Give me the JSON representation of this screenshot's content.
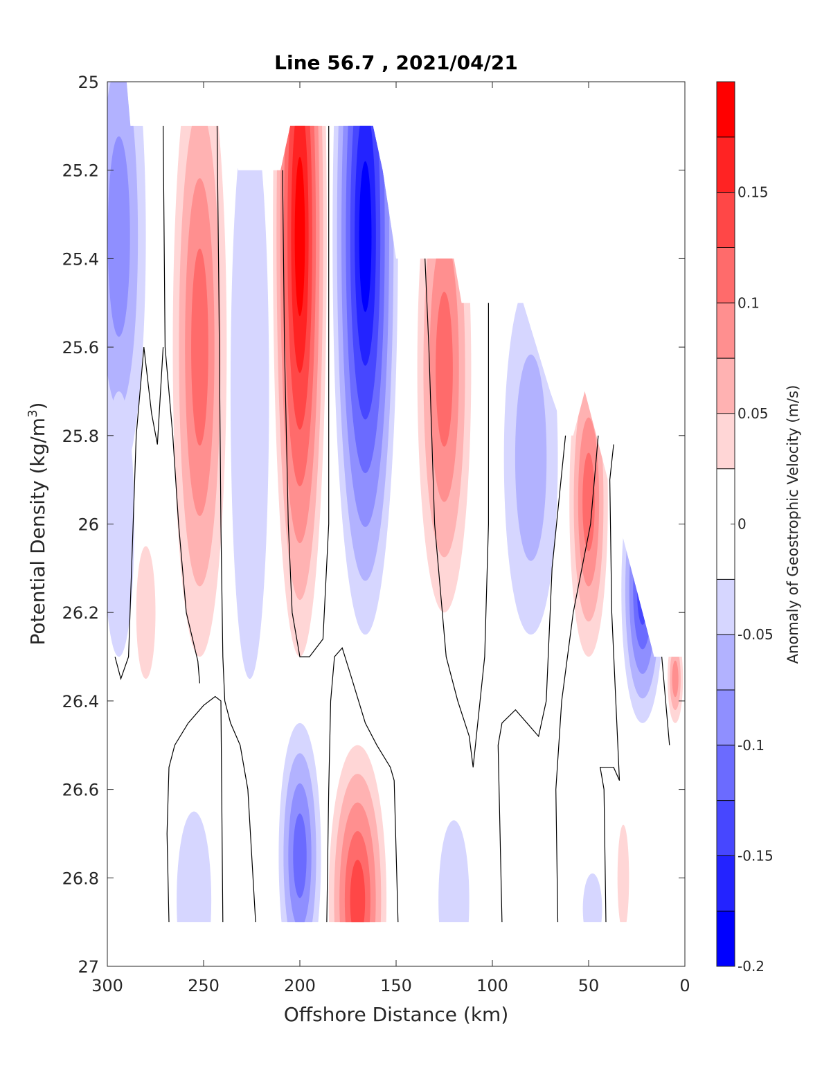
{
  "chart_data": {
    "type": "contourf",
    "title": "Line 56.7 , 2021/04/21",
    "xlabel": "Offshore Distance (km)",
    "ylabel_main": "Potential Density (kg/m",
    "ylabel_sup": "3",
    "ylabel_close": ")",
    "xlim": [
      300,
      0
    ],
    "ylim": [
      25,
      27
    ],
    "x_reversed": true,
    "y_reversed": true,
    "xticks": [
      300,
      250,
      200,
      150,
      100,
      50,
      0
    ],
    "xtick_labels": [
      "300",
      "250",
      "200",
      "150",
      "100",
      "50",
      "0"
    ],
    "yticks": [
      25,
      25.2,
      25.4,
      25.6,
      25.8,
      26,
      26.2,
      26.4,
      26.6,
      26.8,
      27
    ],
    "ytick_labels": [
      "25",
      "25.2",
      "25.4",
      "25.6",
      "25.8",
      "26",
      "26.2",
      "26.4",
      "26.6",
      "26.8",
      "27"
    ],
    "colorbar": {
      "label": "Anomaly of Geostrophic Velocity (m/s)",
      "range": [
        -0.2,
        0.2
      ],
      "levels": [
        -0.2,
        -0.175,
        -0.15,
        -0.125,
        -0.1,
        -0.075,
        -0.05,
        -0.025,
        0.025,
        0.05,
        0.075,
        0.1,
        0.125,
        0.15,
        0.175,
        0.2
      ],
      "level_colors": [
        "#0000ff",
        "#2323ff",
        "#4747ff",
        "#6b6bff",
        "#8f8fff",
        "#b2b2ff",
        "#d6d6ff",
        "#ffffff",
        "#ffd6d6",
        "#ffb2b2",
        "#ff8f8f",
        "#ff6b6b",
        "#ff4747",
        "#ff2323",
        "#ff0000"
      ],
      "ticks": [
        -0.2,
        -0.15,
        -0.1,
        -0.05,
        0,
        0.05,
        0.1,
        0.15
      ],
      "tick_labels": [
        "-0.2",
        "-0.15",
        "-0.1",
        "-0.05",
        "0",
        "0.05",
        "0.1",
        "0.15"
      ]
    },
    "grid": false,
    "legend": "none",
    "data_top_boundary": [
      [
        300,
        25.0
      ],
      [
        290,
        25.0
      ],
      [
        288,
        25.1
      ],
      [
        238,
        25.1
      ],
      [
        232,
        25.2
      ],
      [
        210,
        25.2
      ],
      [
        205,
        25.1
      ],
      [
        162,
        25.1
      ],
      [
        157,
        25.2
      ],
      [
        150,
        25.4
      ],
      [
        120,
        25.4
      ],
      [
        116,
        25.5
      ],
      [
        96,
        25.5
      ],
      [
        84,
        25.5
      ],
      [
        70,
        25.7
      ],
      [
        62,
        25.8
      ],
      [
        58,
        25.8
      ],
      [
        52,
        25.7
      ],
      [
        46,
        25.8
      ],
      [
        40,
        25.9
      ],
      [
        28,
        26.1
      ],
      [
        16,
        26.3
      ],
      [
        0,
        26.3
      ]
    ],
    "data_bottom_depth": 26.9,
    "anomaly_cores": [
      {
        "x": 294,
        "y": 25.35,
        "peak": -0.075,
        "rx": 14,
        "ry": 0.55
      },
      {
        "x": 294,
        "y": 26.0,
        "peak": -0.04,
        "rx": 8,
        "ry": 0.3
      },
      {
        "x": 280,
        "y": 26.2,
        "peak": 0.035,
        "rx": 5,
        "ry": 0.15
      },
      {
        "x": 252,
        "y": 25.6,
        "peak": 0.11,
        "rx": 14,
        "ry": 0.7
      },
      {
        "x": 226,
        "y": 25.7,
        "peak": -0.045,
        "rx": 10,
        "ry": 0.65
      },
      {
        "x": 200,
        "y": 25.35,
        "peak": 0.2,
        "rx": 14,
        "ry": 0.95
      },
      {
        "x": 166,
        "y": 25.35,
        "peak": -0.2,
        "rx": 17,
        "ry": 0.9
      },
      {
        "x": 125,
        "y": 25.65,
        "peak": 0.12,
        "rx": 14,
        "ry": 0.55
      },
      {
        "x": 80,
        "y": 25.85,
        "peak": -0.07,
        "rx": 14,
        "ry": 0.4
      },
      {
        "x": 50,
        "y": 25.95,
        "peak": 0.12,
        "rx": 10,
        "ry": 0.35
      },
      {
        "x": 22,
        "y": 26.15,
        "peak": -0.13,
        "rx": 11,
        "ry": 0.3
      },
      {
        "x": 5,
        "y": 26.35,
        "peak": 0.09,
        "rx": 4,
        "ry": 0.1
      },
      {
        "x": 200,
        "y": 26.75,
        "peak": -0.12,
        "rx": 11,
        "ry": 0.3
      },
      {
        "x": 170,
        "y": 26.85,
        "peak": 0.14,
        "rx": 15,
        "ry": 0.35
      },
      {
        "x": 255,
        "y": 26.85,
        "peak": -0.04,
        "rx": 9,
        "ry": 0.2
      },
      {
        "x": 120,
        "y": 26.85,
        "peak": -0.035,
        "rx": 8,
        "ry": 0.18
      },
      {
        "x": 48,
        "y": 26.87,
        "peak": -0.035,
        "rx": 5,
        "ry": 0.08
      },
      {
        "x": 32,
        "y": 26.8,
        "peak": 0.035,
        "rx": 3,
        "ry": 0.12
      }
    ],
    "zero_contours": [
      [
        [
          271,
          25.1
        ],
        [
          270,
          25.6
        ],
        [
          266,
          25.8
        ],
        [
          263,
          26.0
        ],
        [
          259,
          26.2
        ],
        [
          253,
          26.31
        ],
        [
          252,
          26.36
        ]
      ],
      [
        [
          296,
          26.3
        ],
        [
          293,
          26.35
        ],
        [
          289,
          26.3
        ],
        [
          285,
          25.8
        ],
        [
          281,
          25.6
        ],
        [
          277,
          25.75
        ],
        [
          274,
          25.82
        ],
        [
          271,
          25.6
        ]
      ],
      [
        [
          243,
          25.1
        ],
        [
          242,
          25.5
        ],
        [
          241,
          26.0
        ],
        [
          240,
          26.3
        ],
        [
          239,
          26.4
        ],
        [
          236,
          26.45
        ],
        [
          231,
          26.5
        ],
        [
          227,
          26.6
        ],
        [
          223,
          26.9
        ]
      ],
      [
        [
          209,
          25.2
        ],
        [
          208,
          25.6
        ],
        [
          206,
          26.0
        ],
        [
          204,
          26.2
        ],
        [
          200,
          26.3
        ],
        [
          195,
          26.3
        ],
        [
          188,
          26.26
        ],
        [
          185,
          26.0
        ],
        [
          185,
          25.1
        ]
      ],
      [
        [
          135,
          25.4
        ],
        [
          133,
          25.6
        ],
        [
          130,
          26.0
        ],
        [
          124,
          26.3
        ],
        [
          118,
          26.4
        ],
        [
          112,
          26.48
        ],
        [
          110,
          26.55
        ],
        [
          104,
          26.3
        ],
        [
          102,
          26.0
        ],
        [
          102,
          25.5
        ]
      ],
      [
        [
          268,
          26.9
        ],
        [
          269,
          26.7
        ],
        [
          268,
          26.55
        ],
        [
          265,
          26.5
        ],
        [
          258,
          26.45
        ],
        [
          250,
          26.41
        ],
        [
          244,
          26.39
        ],
        [
          241,
          26.4
        ],
        [
          240,
          26.9
        ]
      ],
      [
        [
          186,
          26.9
        ],
        [
          185,
          26.6
        ],
        [
          184,
          26.4
        ],
        [
          182,
          26.3
        ],
        [
          178,
          26.28
        ],
        [
          173,
          26.35
        ],
        [
          166,
          26.45
        ],
        [
          160,
          26.5
        ],
        [
          153,
          26.55
        ],
        [
          151,
          26.58
        ],
        [
          149,
          26.9
        ]
      ],
      [
        [
          95,
          26.9
        ],
        [
          96,
          26.7
        ],
        [
          97,
          26.5
        ],
        [
          95,
          26.45
        ],
        [
          88,
          26.42
        ],
        [
          82,
          26.45
        ],
        [
          76,
          26.48
        ],
        [
          72,
          26.4
        ],
        [
          69,
          26.1
        ],
        [
          62,
          25.8
        ]
      ],
      [
        [
          66,
          26.9
        ],
        [
          67,
          26.6
        ],
        [
          64,
          26.4
        ],
        [
          58,
          26.2
        ],
        [
          49,
          26.0
        ],
        [
          45,
          25.8
        ]
      ],
      [
        [
          41,
          26.9
        ],
        [
          42,
          26.6
        ],
        [
          44,
          26.55
        ],
        [
          37,
          26.55
        ],
        [
          34,
          26.58
        ],
        [
          38,
          26.2
        ],
        [
          39,
          25.9
        ],
        [
          37,
          25.82
        ]
      ],
      [
        [
          12,
          26.3
        ],
        [
          10,
          26.4
        ],
        [
          8,
          26.5
        ]
      ]
    ]
  }
}
